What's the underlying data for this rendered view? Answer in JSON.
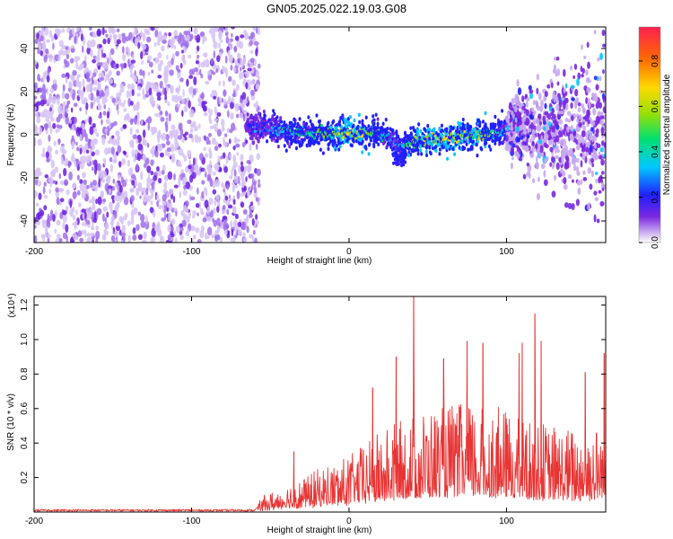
{
  "title": "GN05.2025.022.19.03.G08",
  "colors": {
    "snr_line": "#e83434",
    "spectrogram_palette": [
      "#ffffff",
      "#c8a8f0",
      "#7a28e0",
      "#2020ff",
      "#00c8ff",
      "#00e070",
      "#9ae000",
      "#ffd800",
      "#ff6a00",
      "#ff2050"
    ]
  },
  "chart_data": [
    {
      "type": "heatmap",
      "title": "GN05.2025.022.19.03.G08",
      "xlabel": "Height of straight line (km)",
      "ylabel": "Frequency (Hz)",
      "xlim": [
        -200,
        163
      ],
      "ylim": [
        -50,
        50
      ],
      "x_ticks": [
        -200,
        -100,
        0,
        100
      ],
      "y_ticks": [
        -40,
        -20,
        0,
        20,
        40
      ],
      "colorbar": {
        "label": "Normalized spectral amplitude",
        "range": [
          0.0,
          0.95
        ],
        "ticks": [
          0.0,
          0.2,
          0.4,
          0.6,
          0.8
        ],
        "tick_labels": [
          "0.0",
          "0.2",
          "0.4",
          "0.6",
          "0.8"
        ]
      },
      "noise_region_x": [
        -200,
        -60
      ],
      "ridge": {
        "x": [
          -65,
          -50,
          -30,
          -10,
          0,
          10,
          20,
          28,
          32,
          38,
          50,
          60,
          70,
          80,
          90,
          95,
          100,
          105,
          110
        ],
        "freq": [
          4,
          3,
          1,
          0,
          1,
          1,
          0,
          -3,
          -7,
          -4,
          -2,
          -2,
          -1,
          0,
          0,
          1,
          3,
          8,
          5
        ],
        "amplitude": [
          0.3,
          0.45,
          0.55,
          0.7,
          0.85,
          0.75,
          0.6,
          0.45,
          0.4,
          0.65,
          0.8,
          0.85,
          0.8,
          0.75,
          0.65,
          0.55,
          0.5,
          0.4,
          0.3
        ]
      },
      "scatter_region_x": [
        100,
        163
      ]
    },
    {
      "type": "line",
      "xlabel": "Height of straight line (km)",
      "ylabel": "SNR (10 * v/v)",
      "scale_label": "(x10⁴)",
      "xlim": [
        -200,
        163
      ],
      "ylim": [
        0,
        1.25
      ],
      "x_ticks": [
        -200,
        -100,
        0,
        100
      ],
      "y_ticks": [
        0.2,
        0.4,
        0.6,
        0.8,
        1.0,
        1.2
      ],
      "series": [
        {
          "name": "SNR",
          "envelope_x": [
            -200,
            -60,
            -55,
            -40,
            -20,
            0,
            20,
            40,
            60,
            80,
            100,
            120,
            140,
            163
          ],
          "envelope_mean": [
            0.01,
            0.01,
            0.05,
            0.09,
            0.14,
            0.19,
            0.27,
            0.33,
            0.36,
            0.36,
            0.34,
            0.3,
            0.28,
            0.3
          ],
          "peaks": [
            {
              "x": -35,
              "y": 0.35
            },
            {
              "x": 15,
              "y": 0.72
            },
            {
              "x": 30,
              "y": 0.9
            },
            {
              "x": 41,
              "y": 1.25
            },
            {
              "x": 60,
              "y": 0.89
            },
            {
              "x": 75,
              "y": 0.99
            },
            {
              "x": 85,
              "y": 0.98
            },
            {
              "x": 110,
              "y": 0.98
            },
            {
              "x": 108,
              "y": 0.92
            },
            {
              "x": 118,
              "y": 1.15
            },
            {
              "x": 122,
              "y": 0.99
            },
            {
              "x": 150,
              "y": 0.81
            },
            {
              "x": 162,
              "y": 0.92
            }
          ]
        }
      ]
    }
  ],
  "labels": {
    "top_x": "Height of straight line (km)",
    "top_y": "Frequency (Hz)",
    "bottom_x": "Height of straight line (km)",
    "bottom_y": "SNR (10 * v/v)",
    "bottom_scale": "(x10⁴)",
    "colorbar": "Normalized spectral amplitude"
  }
}
